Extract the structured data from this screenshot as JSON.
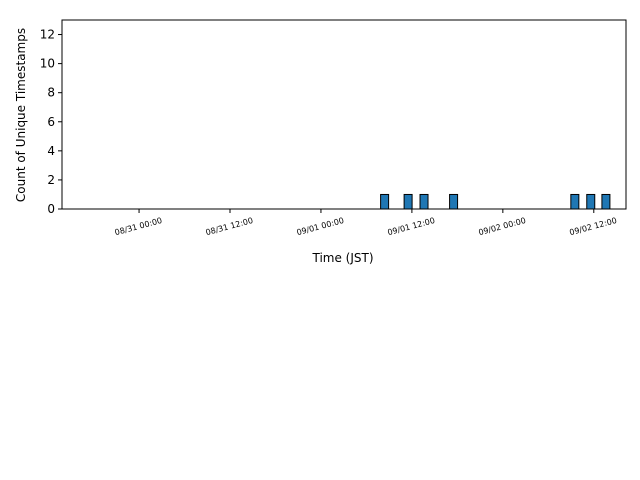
{
  "chart_data": {
    "type": "bar",
    "x": [
      "09/01 08:24",
      "09/01 11:30",
      "09/01 13:36",
      "09/01 17:30",
      "09/02 09:30",
      "09/02 11:36",
      "09/02 13:36"
    ],
    "values": [
      1,
      1,
      1,
      1,
      1,
      1,
      1
    ],
    "color": "#1f77b4",
    "xlabel": "Time (JST)",
    "ylabel": "Count of Unique Timestamps",
    "xlim": [
      "08/30 13:50",
      "09/02 16:15"
    ],
    "xticks": [
      "08/31 00:00",
      "08/31 12:00",
      "09/01 00:00",
      "09/01 12:00",
      "09/02 00:00",
      "09/02 12:00"
    ],
    "ylim": [
      0,
      13
    ],
    "yticks": [
      0,
      2,
      4,
      6,
      8,
      10,
      12
    ]
  }
}
